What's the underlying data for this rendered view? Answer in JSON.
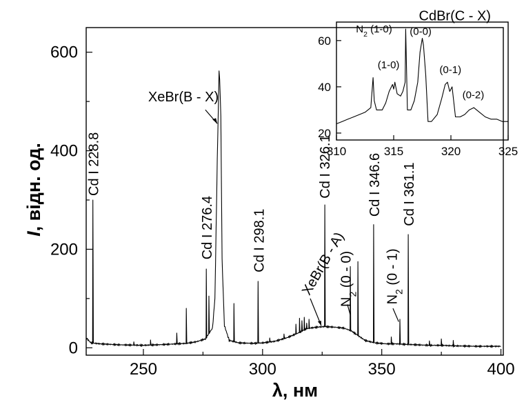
{
  "chart_data": [
    {
      "type": "line",
      "role": "main",
      "xlabel": "λ, нм",
      "ylabel_italic": "I",
      "ylabel_rest": ", відн. од.",
      "xlim": [
        226,
        401
      ],
      "ylim": [
        -15,
        650
      ],
      "xticks": [
        250,
        300,
        350,
        400
      ],
      "yticks": [
        0,
        200,
        400,
        600
      ],
      "baseline": [
        [
          226,
          20
        ],
        [
          228,
          10
        ],
        [
          232,
          8
        ],
        [
          240,
          6
        ],
        [
          250,
          5
        ],
        [
          260,
          7
        ],
        [
          268,
          9
        ],
        [
          272,
          12
        ],
        [
          276,
          18
        ],
        [
          279,
          40
        ],
        [
          280,
          100
        ],
        [
          281,
          380
        ],
        [
          281.8,
          575
        ],
        [
          282.5,
          470
        ],
        [
          283,
          180
        ],
        [
          284,
          45
        ],
        [
          286,
          15
        ],
        [
          290,
          10
        ],
        [
          296,
          9
        ],
        [
          300,
          10
        ],
        [
          305,
          13
        ],
        [
          310,
          20
        ],
        [
          315,
          30
        ],
        [
          318,
          38
        ],
        [
          320,
          40
        ],
        [
          323,
          42
        ],
        [
          326,
          43
        ],
        [
          330,
          42
        ],
        [
          334,
          40
        ],
        [
          337,
          35
        ],
        [
          340,
          25
        ],
        [
          343,
          15
        ],
        [
          347,
          10
        ],
        [
          352,
          8
        ],
        [
          356,
          8
        ],
        [
          360,
          7
        ],
        [
          365,
          6
        ],
        [
          370,
          5
        ],
        [
          375,
          5
        ],
        [
          380,
          4
        ],
        [
          390,
          3
        ],
        [
          400,
          3
        ]
      ],
      "lines": [
        [
          228.8,
          300
        ],
        [
          246,
          12
        ],
        [
          253,
          16
        ],
        [
          264,
          30
        ],
        [
          268,
          80
        ],
        [
          276.4,
          160
        ],
        [
          277.5,
          105
        ],
        [
          288,
          90
        ],
        [
          298.1,
          135
        ],
        [
          303,
          20
        ],
        [
          309,
          28
        ],
        [
          314,
          48
        ],
        [
          315.5,
          60
        ],
        [
          316.5,
          55
        ],
        [
          317.5,
          62
        ],
        [
          318.5,
          50
        ],
        [
          319.5,
          58
        ],
        [
          326.1,
          290
        ],
        [
          336.8,
          165
        ],
        [
          340,
          175
        ],
        [
          346.6,
          250
        ],
        [
          354,
          22
        ],
        [
          357.6,
          58
        ],
        [
          361.1,
          230
        ],
        [
          370,
          14
        ],
        [
          375,
          18
        ],
        [
          380,
          15
        ]
      ],
      "annotations": [
        {
          "text": "Cd I 228.8",
          "x": 228.8,
          "y": 300,
          "rotate": true
        },
        {
          "text": "XeBr(B - X)",
          "x": 282,
          "y": 560
        },
        {
          "text": "Cd I 276.4",
          "x": 276.4,
          "y": 175,
          "rotate": true
        },
        {
          "text": "Cd I 298.1",
          "x": 298.1,
          "y": 150,
          "rotate": true
        },
        {
          "text": "XeBr(B - A)",
          "x": 325,
          "y": 35
        },
        {
          "text": "Cd I 326.1",
          "x": 326.1,
          "y": 300,
          "rotate": true
        },
        {
          "text": "N",
          "sub": "2",
          "tail": " (0 - 0)",
          "x": 336.8,
          "y": 150
        },
        {
          "text": "Cd I 346.6",
          "x": 346.6,
          "y": 260,
          "rotate": true
        },
        {
          "text": "Cd I 361.1",
          "x": 361.1,
          "y": 240,
          "rotate": true
        },
        {
          "text": "N",
          "sub": "2",
          "tail": " (0 - 1)",
          "x": 357.6,
          "y": 55
        }
      ]
    },
    {
      "type": "line",
      "role": "inset",
      "title": "CdBr(C - X)",
      "xlim": [
        310,
        325
      ],
      "ylim": [
        17,
        68
      ],
      "xticks": [
        310,
        315,
        320,
        325
      ],
      "yticks": [
        20,
        40,
        60
      ],
      "x": [
        310,
        310.5,
        311,
        311.5,
        312,
        312.5,
        313,
        313.2,
        313.3,
        313.5,
        313.8,
        314,
        314.3,
        314.6,
        314.9,
        315,
        315.1,
        315.3,
        315.6,
        315.8,
        316,
        316.05,
        316.2,
        316.5,
        316.8,
        317.1,
        317.3,
        317.5,
        317.6,
        317.8,
        318,
        318.3,
        318.8,
        319.2,
        319.5,
        319.7,
        319.9,
        320.1,
        320.4,
        320.8,
        321.2,
        321.6,
        322,
        322.5,
        323,
        323.5,
        324,
        324.5,
        325
      ],
      "y": [
        24,
        25,
        26,
        27,
        28,
        29,
        31,
        44,
        34,
        30,
        30,
        30,
        33,
        38,
        41,
        39,
        42,
        37,
        36,
        38,
        42,
        65,
        30,
        30,
        34,
        42,
        55,
        61,
        58,
        45,
        25,
        25,
        28,
        35,
        41,
        42,
        38,
        40,
        27,
        27,
        28,
        30,
        31,
        29,
        27,
        26,
        26,
        25,
        25
      ],
      "labels": [
        {
          "text": "N",
          "sub": "2",
          "tail": " (1-0)",
          "x": 316,
          "y": 65
        },
        {
          "text": "(0-0)",
          "x": 317.5,
          "y": 61
        },
        {
          "text": "(1-0)",
          "x": 314.7,
          "y": 42
        },
        {
          "text": "(0-1)",
          "x": 319.7,
          "y": 42
        },
        {
          "text": "(0-2)",
          "x": 321.8,
          "y": 31
        }
      ]
    }
  ]
}
